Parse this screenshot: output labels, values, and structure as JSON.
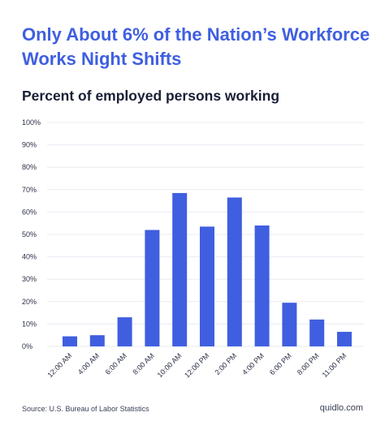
{
  "title": "Only About 6% of the Nation’s Workforce Works Night Shifts",
  "subtitle": "Percent of employed persons working",
  "source": "Source: U.S. Bureau of Labor Statistics",
  "brand": "quidlo.com",
  "colors": {
    "title": "#3f5fe0",
    "bar": "#3f5fe0",
    "grid": "#e9ebf2",
    "text": "#2a2f45"
  },
  "chart_data": {
    "type": "bar",
    "title": "Percent of employed persons working",
    "xlabel": "",
    "ylabel": "",
    "categories": [
      "12:00 AM",
      "4:00 AM",
      "6:00 AM",
      "8:00 AM",
      "10:00 AM",
      "12:00 PM",
      "2:00 PM",
      "4:00 PM",
      "6:00 PM",
      "8:00 PM",
      "11:00 PM"
    ],
    "values": [
      4.5,
      5,
      13,
      52,
      68.5,
      53.5,
      66.5,
      54,
      19.5,
      12,
      6.5
    ],
    "ylim": [
      0,
      100
    ],
    "yticks": [
      "0%",
      "10%",
      "20%",
      "30%",
      "40%",
      "50%",
      "60%",
      "70%",
      "80%",
      "90%",
      "100%"
    ],
    "grid": true,
    "legend": "none"
  }
}
